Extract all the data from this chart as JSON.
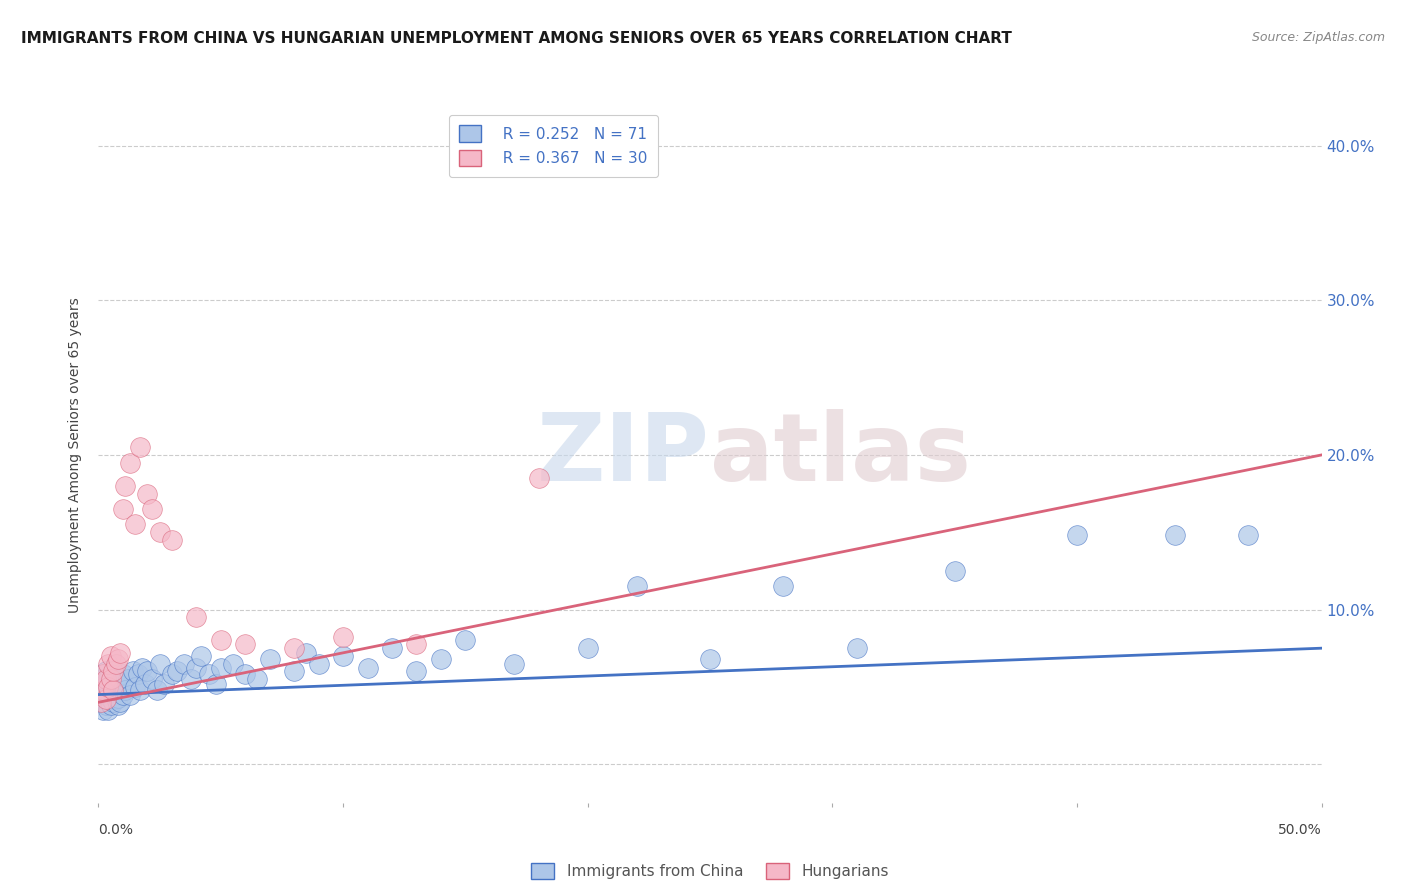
{
  "title": "IMMIGRANTS FROM CHINA VS HUNGARIAN UNEMPLOYMENT AMONG SENIORS OVER 65 YEARS CORRELATION CHART",
  "source": "Source: ZipAtlas.com",
  "ylabel": "Unemployment Among Seniors over 65 years",
  "y_tick_vals": [
    0.0,
    0.1,
    0.2,
    0.3,
    0.4
  ],
  "y_tick_labels_right": [
    "",
    "10.0%",
    "20.0%",
    "30.0%",
    "40.0%"
  ],
  "x_range": [
    0.0,
    0.5
  ],
  "y_range": [
    -0.025,
    0.425
  ],
  "legend_r1": "R = 0.252",
  "legend_n1": "N = 71",
  "legend_r2": "R = 0.367",
  "legend_n2": "N = 30",
  "scatter_color_1": "#adc6e8",
  "scatter_color_2": "#f5b8c8",
  "line_color_1": "#4472c4",
  "line_color_2": "#d9637a",
  "legend_label_1": "Immigrants from China",
  "legend_label_2": "Hungarians",
  "watermark_zip": "ZIP",
  "watermark_atlas": "atlas",
  "blue_line_start": 0.045,
  "blue_line_end": 0.075,
  "pink_line_start": 0.04,
  "pink_line_end": 0.2,
  "blue_x": [
    0.001,
    0.001,
    0.002,
    0.002,
    0.003,
    0.003,
    0.003,
    0.004,
    0.004,
    0.004,
    0.005,
    0.005,
    0.005,
    0.006,
    0.006,
    0.006,
    0.007,
    0.007,
    0.008,
    0.008,
    0.008,
    0.009,
    0.009,
    0.01,
    0.01,
    0.011,
    0.012,
    0.013,
    0.014,
    0.015,
    0.016,
    0.017,
    0.018,
    0.019,
    0.02,
    0.022,
    0.024,
    0.025,
    0.027,
    0.03,
    0.032,
    0.035,
    0.038,
    0.04,
    0.042,
    0.045,
    0.048,
    0.05,
    0.055,
    0.06,
    0.065,
    0.07,
    0.08,
    0.085,
    0.09,
    0.1,
    0.11,
    0.12,
    0.13,
    0.14,
    0.15,
    0.17,
    0.2,
    0.22,
    0.25,
    0.28,
    0.31,
    0.35,
    0.4,
    0.44,
    0.47
  ],
  "blue_y": [
    0.04,
    0.055,
    0.035,
    0.05,
    0.038,
    0.048,
    0.06,
    0.035,
    0.055,
    0.045,
    0.038,
    0.052,
    0.042,
    0.04,
    0.058,
    0.048,
    0.042,
    0.055,
    0.038,
    0.052,
    0.043,
    0.055,
    0.04,
    0.045,
    0.058,
    0.048,
    0.055,
    0.045,
    0.06,
    0.05,
    0.058,
    0.048,
    0.062,
    0.052,
    0.06,
    0.055,
    0.048,
    0.065,
    0.052,
    0.058,
    0.06,
    0.065,
    0.055,
    0.062,
    0.07,
    0.058,
    0.052,
    0.062,
    0.065,
    0.058,
    0.055,
    0.068,
    0.06,
    0.072,
    0.065,
    0.07,
    0.062,
    0.075,
    0.06,
    0.068,
    0.08,
    0.065,
    0.075,
    0.115,
    0.068,
    0.115,
    0.075,
    0.125,
    0.148,
    0.148,
    0.148
  ],
  "pink_x": [
    0.001,
    0.002,
    0.002,
    0.003,
    0.003,
    0.004,
    0.004,
    0.005,
    0.005,
    0.006,
    0.006,
    0.007,
    0.008,
    0.009,
    0.01,
    0.011,
    0.013,
    0.015,
    0.017,
    0.02,
    0.022,
    0.025,
    0.03,
    0.04,
    0.05,
    0.06,
    0.08,
    0.1,
    0.13,
    0.18
  ],
  "pink_y": [
    0.04,
    0.048,
    0.058,
    0.042,
    0.055,
    0.05,
    0.065,
    0.055,
    0.07,
    0.048,
    0.06,
    0.065,
    0.068,
    0.072,
    0.165,
    0.18,
    0.195,
    0.155,
    0.205,
    0.175,
    0.165,
    0.15,
    0.145,
    0.095,
    0.08,
    0.078,
    0.075,
    0.082,
    0.078,
    0.185
  ]
}
